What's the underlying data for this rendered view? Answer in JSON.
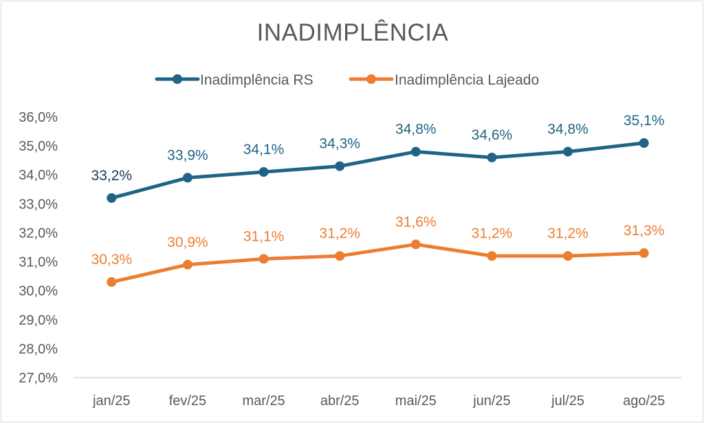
{
  "chart_data": {
    "type": "line",
    "title": "INADIMPLÊNCIA",
    "categories": [
      "jan/25",
      "fev/25",
      "mar/25",
      "abr/25",
      "mai/25",
      "jun/25",
      "jul/25",
      "ago/25"
    ],
    "series": [
      {
        "name": "Inadimplência RS",
        "color": "#1f6484",
        "values": [
          33.2,
          33.9,
          34.1,
          34.3,
          34.8,
          34.6,
          34.8,
          35.1
        ],
        "labels": [
          "33,2%",
          "33,9%",
          "34,1%",
          "34,3%",
          "34,8%",
          "34,6%",
          "34,8%",
          "35,1%"
        ]
      },
      {
        "name": "Inadimplência Lajeado",
        "color": "#ed7d31",
        "values": [
          30.3,
          30.9,
          31.1,
          31.2,
          31.6,
          31.2,
          31.2,
          31.3
        ],
        "labels": [
          "30,3%",
          "30,9%",
          "31,1%",
          "31,2%",
          "31,6%",
          "31,2%",
          "31,2%",
          "31,3%"
        ]
      }
    ],
    "ylim": [
      27.0,
      36.0
    ],
    "yticks": [
      "27,0%",
      "28,0%",
      "29,0%",
      "30,0%",
      "31,0%",
      "32,0%",
      "33,0%",
      "34,0%",
      "35,0%",
      "36,0%"
    ],
    "ytick_values": [
      27,
      28,
      29,
      30,
      31,
      32,
      33,
      34,
      35,
      36
    ],
    "grid": false,
    "legend_position": "top"
  }
}
